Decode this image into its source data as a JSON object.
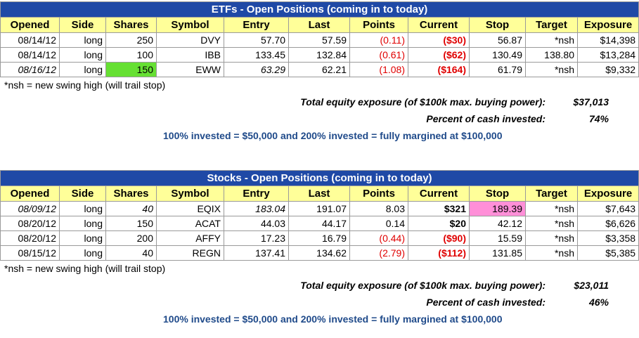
{
  "etf": {
    "title": "ETFs - Open Positions (coming in to today)",
    "headers": [
      "Opened",
      "Side",
      "Shares",
      "Symbol",
      "Entry",
      "Last",
      "Points",
      "Current",
      "Stop",
      "Target",
      "Exposure"
    ],
    "rows": [
      {
        "opened": "08/14/12",
        "side": "long",
        "shares": "250",
        "symbol": "DVY",
        "entry": "57.70",
        "last": "57.59",
        "points": "(0.11)",
        "current": "($30)",
        "stop": "56.87",
        "target": "*nsh",
        "exposure": "$14,398"
      },
      {
        "opened": "08/14/12",
        "side": "long",
        "shares": "100",
        "symbol": "IBB",
        "entry": "133.45",
        "last": "132.84",
        "points": "(0.61)",
        "current": "($62)",
        "stop": "130.49",
        "target": "138.80",
        "exposure": "$13,284"
      },
      {
        "opened": "08/16/12",
        "side": "long",
        "shares": "150",
        "symbol": "EWW",
        "entry": "63.29",
        "last": "62.21",
        "points": "(1.08)",
        "current": "($164)",
        "stop": "61.79",
        "target": "*nsh",
        "exposure": "$9,332"
      }
    ],
    "note": "*nsh = new swing high (will trail stop)",
    "total_label": "Total equity exposure (of $100k max. buying power):",
    "total_value": "$37,013",
    "percent_label": "Percent of cash invested:",
    "percent_value": "74%",
    "invested_note": "100% invested = $50,000 and 200% invested = fully margined at $100,000"
  },
  "stocks": {
    "title": "Stocks - Open Positions (coming in to today)",
    "headers": [
      "Opened",
      "Side",
      "Shares",
      "Symbol",
      "Entry",
      "Last",
      "Points",
      "Current",
      "Stop",
      "Target",
      "Exposure"
    ],
    "rows": [
      {
        "opened": "08/09/12",
        "side": "long",
        "shares": "40",
        "symbol": "EQIX",
        "entry": "183.04",
        "last": "191.07",
        "points": "8.03",
        "current": "$321",
        "stop": "189.39",
        "target": "*nsh",
        "exposure": "$7,643"
      },
      {
        "opened": "08/20/12",
        "side": "long",
        "shares": "150",
        "symbol": "ACAT",
        "entry": "44.03",
        "last": "44.17",
        "points": "0.14",
        "current": "$20",
        "stop": "42.12",
        "target": "*nsh",
        "exposure": "$6,626"
      },
      {
        "opened": "08/20/12",
        "side": "long",
        "shares": "200",
        "symbol": "AFFY",
        "entry": "17.23",
        "last": "16.79",
        "points": "(0.44)",
        "current": "($90)",
        "stop": "15.59",
        "target": "*nsh",
        "exposure": "$3,358"
      },
      {
        "opened": "08/15/12",
        "side": "long",
        "shares": "40",
        "symbol": "REGN",
        "entry": "137.41",
        "last": "134.62",
        "points": "(2.79)",
        "current": "($112)",
        "stop": "131.85",
        "target": "*nsh",
        "exposure": "$5,385"
      }
    ],
    "note": "*nsh = new swing high (will trail stop)",
    "total_label": "Total equity exposure (of $100k max. buying power):",
    "total_value": "$23,011",
    "percent_label": "Percent of cash invested:",
    "percent_value": "46%",
    "invested_note": "100% invested = $50,000 and 200% invested = fully margined at $100,000"
  },
  "colors": {
    "title_bg": "#1f49a6",
    "header_bg": "#ffff99",
    "negative": "#e00000",
    "highlight_green": "#66e033",
    "highlight_pink": "#ff8fd8",
    "note_blue": "#1f4a8a"
  }
}
